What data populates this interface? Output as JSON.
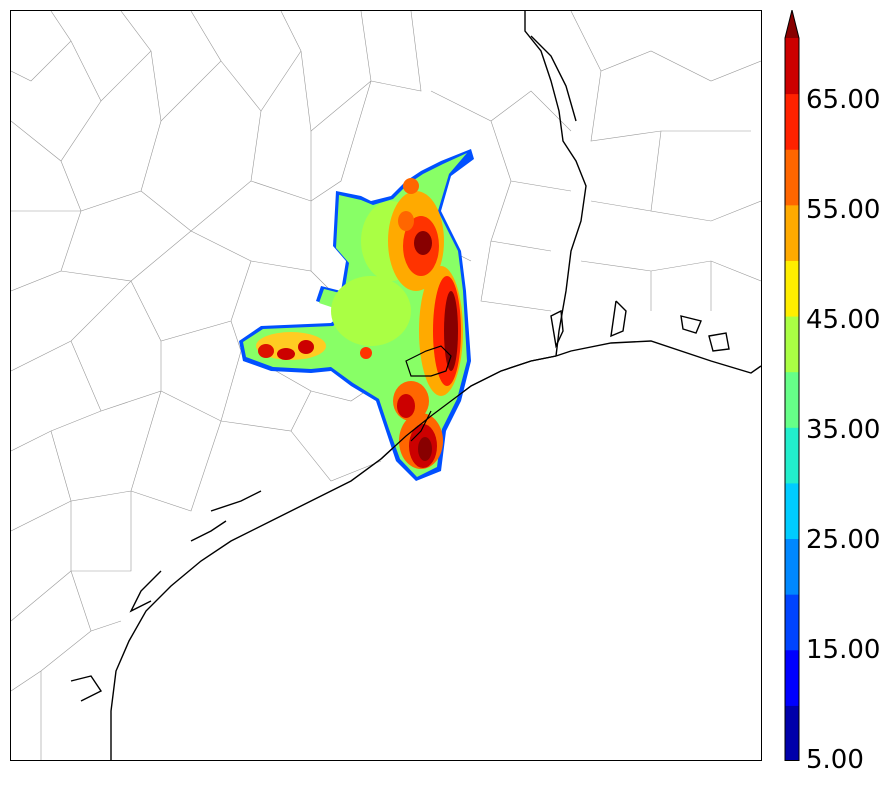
{
  "colorbar": {
    "labels": [
      "65.00",
      "55.00",
      "45.00",
      "35.00",
      "25.00",
      "15.00",
      "5.00"
    ],
    "levels": [
      5,
      10,
      15,
      20,
      25,
      30,
      35,
      40,
      45,
      50,
      55,
      60,
      65,
      70
    ],
    "colors": [
      "#0000aa",
      "#0000ff",
      "#0044ff",
      "#0088ff",
      "#00ccff",
      "#22eecc",
      "#66ff88",
      "#aaff44",
      "#ffee00",
      "#ffaa00",
      "#ff6600",
      "#ff2200",
      "#cc0000",
      "#880000"
    ],
    "extend": "max"
  },
  "map": {
    "coastline_color": "#000000",
    "county_color": "#888888",
    "background": "#ffffff"
  }
}
